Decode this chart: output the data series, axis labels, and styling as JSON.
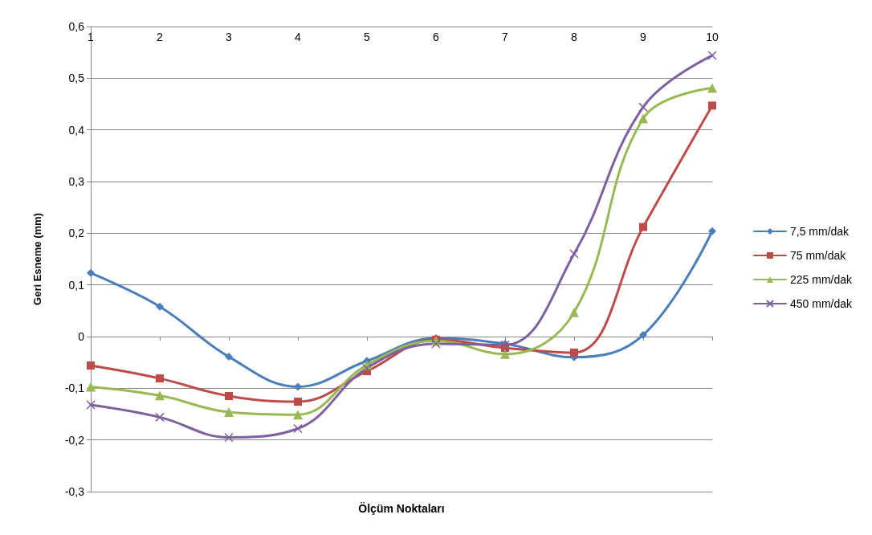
{
  "chart_data": {
    "type": "line",
    "xlabel": "Ölçüm Noktaları",
    "ylabel": "Geri Esneme (mm)",
    "categories": [
      "1",
      "2",
      "3",
      "4",
      "5",
      "6",
      "7",
      "8",
      "9",
      "10"
    ],
    "series": [
      {
        "name": "7,5 mm/dak",
        "color": "#4a7ebb",
        "marker": "diamond",
        "values": [
          0.123,
          0.058,
          -0.039,
          -0.097,
          -0.047,
          -0.003,
          -0.014,
          -0.04,
          0.003,
          0.204
        ]
      },
      {
        "name": "75 mm/dak",
        "color": "#be4b48",
        "marker": "square",
        "values": [
          -0.056,
          -0.081,
          -0.115,
          -0.126,
          -0.067,
          -0.006,
          -0.022,
          -0.031,
          0.212,
          0.447
        ]
      },
      {
        "name": "225 mm/dak",
        "color": "#98b954",
        "marker": "triangle",
        "values": [
          -0.097,
          -0.114,
          -0.146,
          -0.151,
          -0.055,
          -0.008,
          -0.034,
          0.047,
          0.422,
          0.481
        ]
      },
      {
        "name": "450 mm/dak",
        "color": "#7d60a0",
        "marker": "cross",
        "values": [
          -0.132,
          -0.156,
          -0.195,
          -0.178,
          -0.061,
          -0.014,
          -0.016,
          0.16,
          0.444,
          0.544
        ]
      }
    ],
    "ylim": [
      -0.3,
      0.6
    ],
    "yticks": [
      {
        "value": -0.3,
        "label": "-0,3"
      },
      {
        "value": -0.2,
        "label": "-0,2"
      },
      {
        "value": -0.1,
        "label": "-0,1"
      },
      {
        "value": 0,
        "label": "0"
      },
      {
        "value": 0.1,
        "label": "0,1"
      },
      {
        "value": 0.2,
        "label": "0,2"
      },
      {
        "value": 0.3,
        "label": "0,3"
      },
      {
        "value": 0.4,
        "label": "0,4"
      },
      {
        "value": 0.5,
        "label": "0,5"
      },
      {
        "value": 0.6,
        "label": "0,6"
      }
    ],
    "grid": "y",
    "legend": "right",
    "line_style": "solid"
  }
}
